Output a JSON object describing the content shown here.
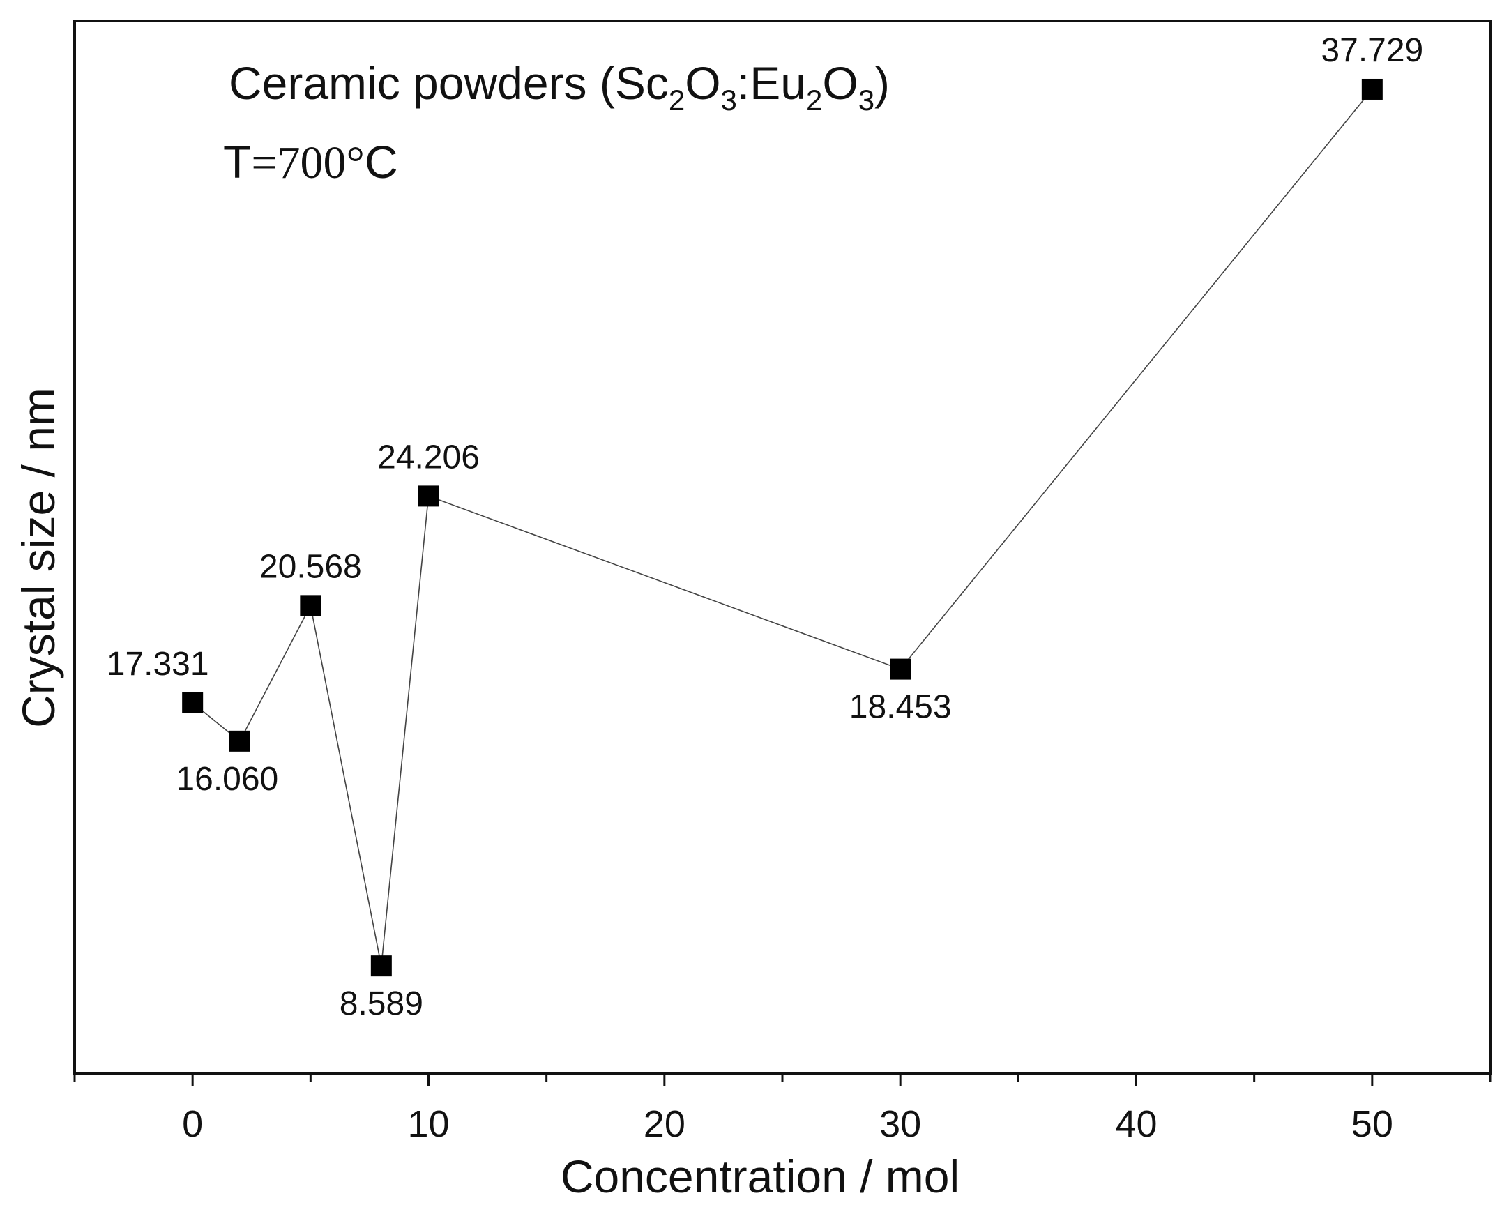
{
  "chart_data": {
    "type": "scatter",
    "title": "",
    "xlabel": "Concentration / mol",
    "ylabel": "Crystal size / nm",
    "xlim": [
      -5,
      55
    ],
    "ylim": [
      5,
      40
    ],
    "x_ticks": [
      0,
      10,
      20,
      30,
      40,
      50
    ],
    "x_tick_labels": [
      "0",
      "10",
      "20",
      "30",
      "40",
      "50"
    ],
    "y_ticks_labeled": false,
    "grid": false,
    "legend": "none",
    "marker": "square",
    "line": true,
    "annotations": {
      "material_prefix": "Ceramic powders (Sc",
      "material_sub1": "2",
      "material_mid1": "O",
      "material_sub2": "3",
      "material_mid2": ":Eu",
      "material_sub3": "2",
      "material_mid3": "O",
      "material_sub4": "3",
      "material_suffix": ")",
      "temp_prefix": "T",
      "temp_value": "=700°",
      "temp_unit": "C"
    },
    "series": [
      {
        "x": [
          0,
          2,
          5,
          8,
          10,
          30,
          50
        ],
        "y": [
          17.331,
          16.06,
          20.568,
          8.589,
          24.206,
          18.453,
          37.729
        ],
        "labels": [
          "17.331",
          "16.060",
          "20.568",
          "8.589",
          "24.206",
          "18.453",
          "37.729"
        ],
        "label_positions": [
          "above",
          "below",
          "above",
          "below",
          "above",
          "below",
          "above"
        ]
      }
    ],
    "colors": {
      "marker": "#000000",
      "line": "#444444",
      "frame": "#111111"
    }
  }
}
